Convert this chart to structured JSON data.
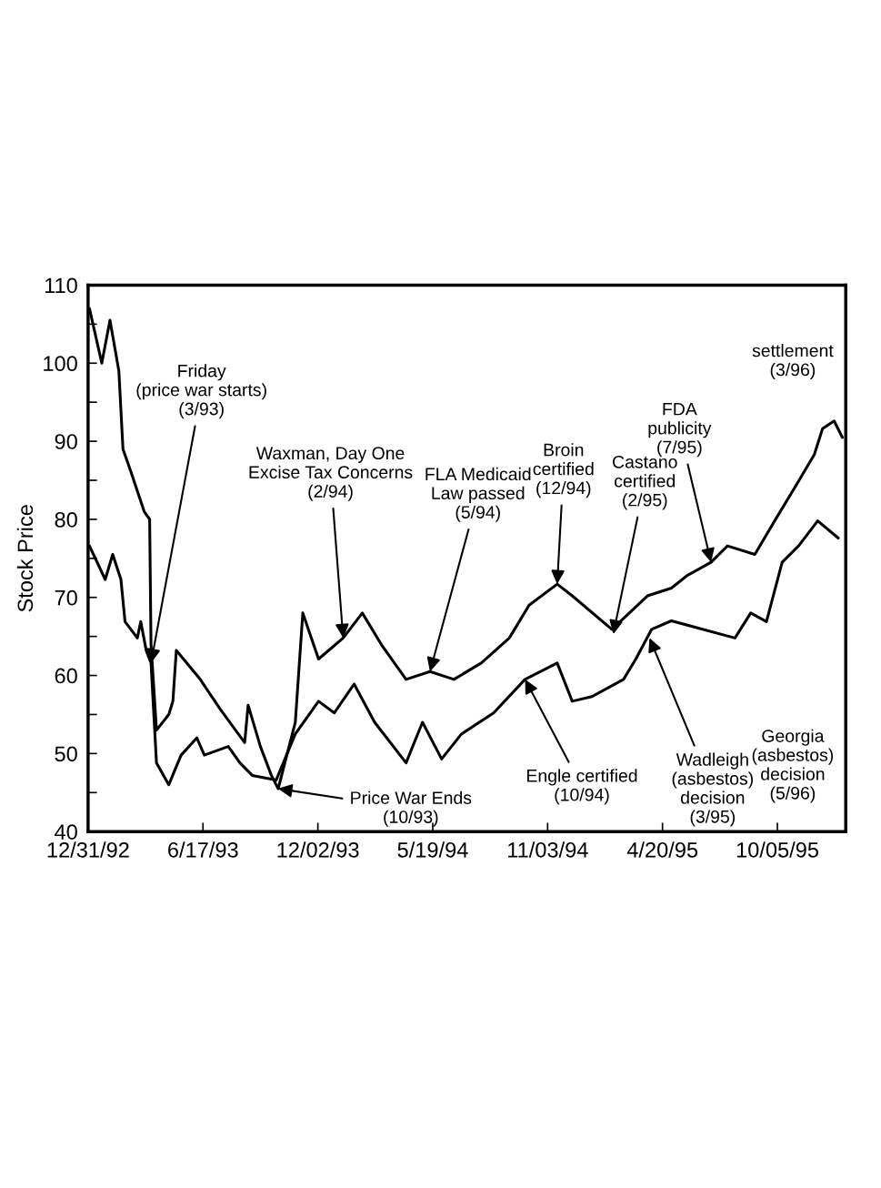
{
  "chart_data": {
    "type": "line",
    "ylabel": "Stock Price",
    "xlim": [
      "1992-12-31",
      "1996-01-13"
    ],
    "ylim": [
      40,
      110
    ],
    "xticks": [
      {
        "value": "1992-12-31",
        "label": "12/31/92"
      },
      {
        "value": "1993-06-17",
        "label": "6/17/93"
      },
      {
        "value": "1993-12-02",
        "label": "12/02/93"
      },
      {
        "value": "1994-05-19",
        "label": "5/19/94"
      },
      {
        "value": "1994-11-03",
        "label": "11/03/94"
      },
      {
        "value": "1995-04-20",
        "label": "4/20/95"
      },
      {
        "value": "1995-10-05",
        "label": "10/05/95"
      }
    ],
    "yticks": [
      40,
      {
        "value": 45,
        "label": null
      },
      50,
      {
        "value": 55,
        "label": null
      },
      60,
      {
        "value": 65,
        "label": null
      },
      70,
      {
        "value": 75,
        "label": null
      },
      80,
      {
        "value": 85,
        "label": null
      },
      90,
      {
        "value": 95,
        "label": null
      },
      100,
      {
        "value": 105,
        "label": null
      },
      110
    ],
    "series": [
      {
        "color": "#000000",
        "x": [
          "1993-01-02",
          "1993-01-20",
          "1993-02-01",
          "1993-02-14",
          "1993-02-20",
          "1993-03-04",
          "1993-03-23",
          "1993-03-31",
          "1993-04-02",
          "1993-04-10",
          "1993-04-28",
          "1993-05-04",
          "1993-05-09",
          "1993-06-13",
          "1993-07-12",
          "1993-08-17",
          "1993-08-22",
          "1993-09-09",
          "1993-09-25",
          "1993-10-05",
          "1993-10-30",
          "1993-11-10",
          "1993-12-03",
          "1994-01-08",
          "1994-02-05",
          "1994-03-06",
          "1994-04-10",
          "1994-05-15",
          "1994-06-19",
          "1994-07-29",
          "1994-09-08",
          "1994-10-07",
          "1994-11-17",
          "1994-12-09",
          "1995-02-05",
          "1995-03-29",
          "1995-05-03",
          "1995-05-26",
          "1995-06-30",
          "1995-07-24",
          "1995-09-02",
          "1995-10-01",
          "1995-10-30",
          "1995-11-28",
          "1995-12-10",
          "1995-12-27",
          "1996-01-08"
        ],
        "values": [
          107,
          100,
          105.5,
          99,
          89,
          86,
          81,
          80,
          64,
          53,
          55,
          56.7,
          63.2,
          59.5,
          55.7,
          51.4,
          56.2,
          50.9,
          47.2,
          45.5,
          54,
          68,
          62.1,
          64.8,
          68,
          63.8,
          59.5,
          60.5,
          59.5,
          61.6,
          64.8,
          69,
          71.7,
          70.2,
          65.9,
          70.2,
          71.2,
          72.8,
          74.5,
          76.6,
          75.5,
          79.8,
          84,
          88.3,
          91.6,
          92.6,
          90.5
        ]
      },
      {
        "color": "#000000",
        "x": [
          "1993-01-02",
          "1993-01-25",
          "1993-02-05",
          "1993-02-17",
          "1993-02-23",
          "1993-03-13",
          "1993-03-18",
          "1993-03-26",
          "1993-04-02",
          "1993-04-10",
          "1993-04-28",
          "1993-05-16",
          "1993-06-08",
          "1993-06-19",
          "1993-07-24",
          "1993-08-10",
          "1993-08-28",
          "1993-10-02",
          "1993-10-30",
          "1993-12-03",
          "1993-12-26",
          "1994-01-24",
          "1994-02-23",
          "1994-04-10",
          "1994-05-04",
          "1994-06-01",
          "1994-06-30",
          "1994-08-16",
          "1994-10-01",
          "1994-11-17",
          "1994-12-09",
          "1995-01-07",
          "1995-02-22",
          "1995-03-12",
          "1995-04-04",
          "1995-05-03",
          "1995-08-04",
          "1995-08-27",
          "1995-09-19",
          "1995-10-12",
          "1995-11-05",
          "1995-12-03",
          "1996-01-02"
        ],
        "values": [
          76.6,
          72.3,
          75.5,
          72.3,
          66.9,
          64.8,
          66.9,
          63.2,
          61.6,
          48.8,
          46,
          49.8,
          52,
          49.8,
          50.9,
          48.8,
          47.2,
          46.6,
          52.5,
          56.7,
          55.2,
          58.9,
          54,
          48.8,
          54,
          49.3,
          52.5,
          55.2,
          59.5,
          61.6,
          56.7,
          57.3,
          59.5,
          62.1,
          65.9,
          67,
          64.8,
          68,
          66.9,
          74.5,
          76.6,
          79.8,
          77.6
        ]
      }
    ],
    "annotations": [
      {
        "text": "Friday\n(price war starts)\n(3/93)",
        "x": "1993-04-02",
        "y": 61.6
      },
      {
        "text": "Waxman, Day One\nExcise Tax Concerns\n(2/94)",
        "x": "1994-01-08",
        "y": 64.8
      },
      {
        "text": "FLA Medicaid\nLaw passed\n(5/94)",
        "x": "1994-05-15",
        "y": 60.5
      },
      {
        "text": "Price War Ends\n(10/93)",
        "x": "1993-10-05",
        "y": 45.5
      },
      {
        "text": "Broin\ncertified\n(12/94)",
        "x": "1994-11-17",
        "y": 71.7
      },
      {
        "text": "Engle certified\n(10/94)",
        "x": "1994-10-01",
        "y": 59.5
      },
      {
        "text": "Castano\ncertified\n(2/95)",
        "x": "1995-02-07",
        "y": 65.3
      },
      {
        "text": "Wadleigh\n(asbestos)\ndecision\n(3/95)",
        "x": "1995-04-01",
        "y": 64.8
      },
      {
        "text": "FDA\npublicity\n(7/95)",
        "x": "1995-06-30",
        "y": 74.5
      },
      "settlement\n(3/96)",
      "Georgia\n(asbestos)\ndecision\n(5/96)"
    ]
  }
}
